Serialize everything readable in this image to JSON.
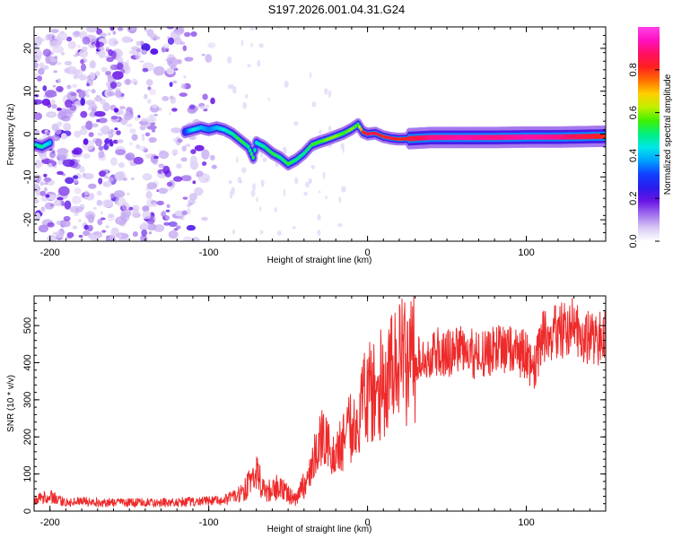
{
  "title": "S197.2026.001.04.31.G24",
  "colors": {
    "snr_line": "#ee2a2a",
    "axis": "#000000",
    "background": "#ffffff"
  },
  "chart_data": [
    {
      "type": "heatmap",
      "name": "spectrogram",
      "xlabel": "Height of straight line (km)",
      "ylabel": "Frequency (Hz)",
      "xlim": [
        -210,
        150
      ],
      "ylim": [
        -25,
        25
      ],
      "x_ticks": [
        -200,
        -100,
        0,
        100
      ],
      "y_ticks": [
        -20,
        -10,
        0,
        10,
        20
      ],
      "colorbar": {
        "label": "Normalized spectral amplitude",
        "range": [
          0.0,
          1.0
        ],
        "ticks": [
          0.0,
          0.2,
          0.4,
          0.6,
          0.8
        ],
        "colormap": [
          "#ffffff",
          "#d8c8f4",
          "#a070ec",
          "#6a14e6",
          "#2a1cec",
          "#1040ff",
          "#00a0ff",
          "#00e8e8",
          "#00f080",
          "#40f000",
          "#c0f000",
          "#ffd000",
          "#ff7000",
          "#ff2020",
          "#ff1060",
          "#ff10c0",
          "#ff40e8"
        ]
      },
      "noise_region_x": [
        -210,
        -95
      ],
      "ridge": [
        {
          "x": -210,
          "f": -2.5,
          "a": 0.45
        },
        {
          "x": -205,
          "f": -3.0,
          "a": 0.5
        },
        {
          "x": -200,
          "f": -2.0,
          "a": 0.4
        },
        {
          "x": -115,
          "f": 0.5,
          "a": 0.3
        },
        {
          "x": -110,
          "f": 1.0,
          "a": 0.45
        },
        {
          "x": -105,
          "f": 1.5,
          "a": 0.4
        },
        {
          "x": -100,
          "f": 1.0,
          "a": 0.35
        },
        {
          "x": -95,
          "f": 1.5,
          "a": 0.4
        },
        {
          "x": -90,
          "f": 1.0,
          "a": 0.45
        },
        {
          "x": -85,
          "f": 0.0,
          "a": 0.5
        },
        {
          "x": -80,
          "f": -1.5,
          "a": 0.55
        },
        {
          "x": -75,
          "f": -3.0,
          "a": 0.5
        },
        {
          "x": -72,
          "f": -5.5,
          "a": 0.55
        },
        {
          "x": -70,
          "f": -2.0,
          "a": 0.45
        },
        {
          "x": -65,
          "f": -3.0,
          "a": 0.5
        },
        {
          "x": -60,
          "f": -4.5,
          "a": 0.55
        },
        {
          "x": -55,
          "f": -5.5,
          "a": 0.5
        },
        {
          "x": -50,
          "f": -7.0,
          "a": 0.55
        },
        {
          "x": -45,
          "f": -6.0,
          "a": 0.5
        },
        {
          "x": -40,
          "f": -4.5,
          "a": 0.5
        },
        {
          "x": -35,
          "f": -2.5,
          "a": 0.55
        },
        {
          "x": -30,
          "f": -1.8,
          "a": 0.55
        },
        {
          "x": -25,
          "f": -1.2,
          "a": 0.6
        },
        {
          "x": -20,
          "f": -0.5,
          "a": 0.6
        },
        {
          "x": -15,
          "f": 0.2,
          "a": 0.55
        },
        {
          "x": -10,
          "f": 1.2,
          "a": 0.6
        },
        {
          "x": -6,
          "f": 2.2,
          "a": 0.55
        },
        {
          "x": -3,
          "f": 0.5,
          "a": 0.8
        },
        {
          "x": 0,
          "f": 0.0,
          "a": 0.85
        },
        {
          "x": 5,
          "f": 0.2,
          "a": 0.85
        },
        {
          "x": 10,
          "f": -0.6,
          "a": 0.8
        },
        {
          "x": 15,
          "f": -1.0,
          "a": 0.85
        },
        {
          "x": 20,
          "f": -1.2,
          "a": 0.8
        },
        {
          "x": 30,
          "f": -1.0,
          "a": 0.85
        },
        {
          "x": 40,
          "f": -0.8,
          "a": 0.9
        },
        {
          "x": 60,
          "f": -0.8,
          "a": 0.92
        },
        {
          "x": 80,
          "f": -0.8,
          "a": 0.9
        },
        {
          "x": 100,
          "f": -0.7,
          "a": 0.92
        },
        {
          "x": 120,
          "f": -0.7,
          "a": 0.9
        },
        {
          "x": 135,
          "f": -0.6,
          "a": 0.85
        },
        {
          "x": 150,
          "f": -0.5,
          "a": 0.8
        }
      ]
    },
    {
      "type": "line",
      "name": "snr",
      "xlabel": "Height of straight line (km)",
      "ylabel": "SNR (10 * v/v)",
      "xlim": [
        -210,
        150
      ],
      "ylim": [
        0,
        580
      ],
      "x_ticks": [
        -200,
        -100,
        0,
        100
      ],
      "y_ticks": [
        0,
        100,
        200,
        300,
        400,
        500
      ],
      "series": [
        {
          "name": "SNR",
          "color": "#ee2a2a",
          "x": [
            -210,
            -200,
            -190,
            -180,
            -170,
            -160,
            -150,
            -140,
            -130,
            -120,
            -110,
            -100,
            -90,
            -80,
            -75,
            -70,
            -65,
            -60,
            -55,
            -50,
            -45,
            -40,
            -35,
            -30,
            -25,
            -20,
            -15,
            -10,
            -5,
            0,
            5,
            10,
            15,
            20,
            30,
            40,
            50,
            60,
            70,
            80,
            90,
            100,
            105,
            110,
            120,
            130,
            140,
            150
          ],
          "values": [
            30,
            40,
            22,
            25,
            24,
            23,
            22,
            24,
            23,
            24,
            25,
            26,
            30,
            45,
            70,
            100,
            55,
            60,
            65,
            45,
            30,
            70,
            120,
            190,
            180,
            150,
            200,
            230,
            260,
            320,
            330,
            350,
            380,
            400,
            420,
            425,
            430,
            430,
            420,
            430,
            440,
            420,
            380,
            470,
            480,
            500,
            460,
            470
          ]
        }
      ]
    }
  ]
}
